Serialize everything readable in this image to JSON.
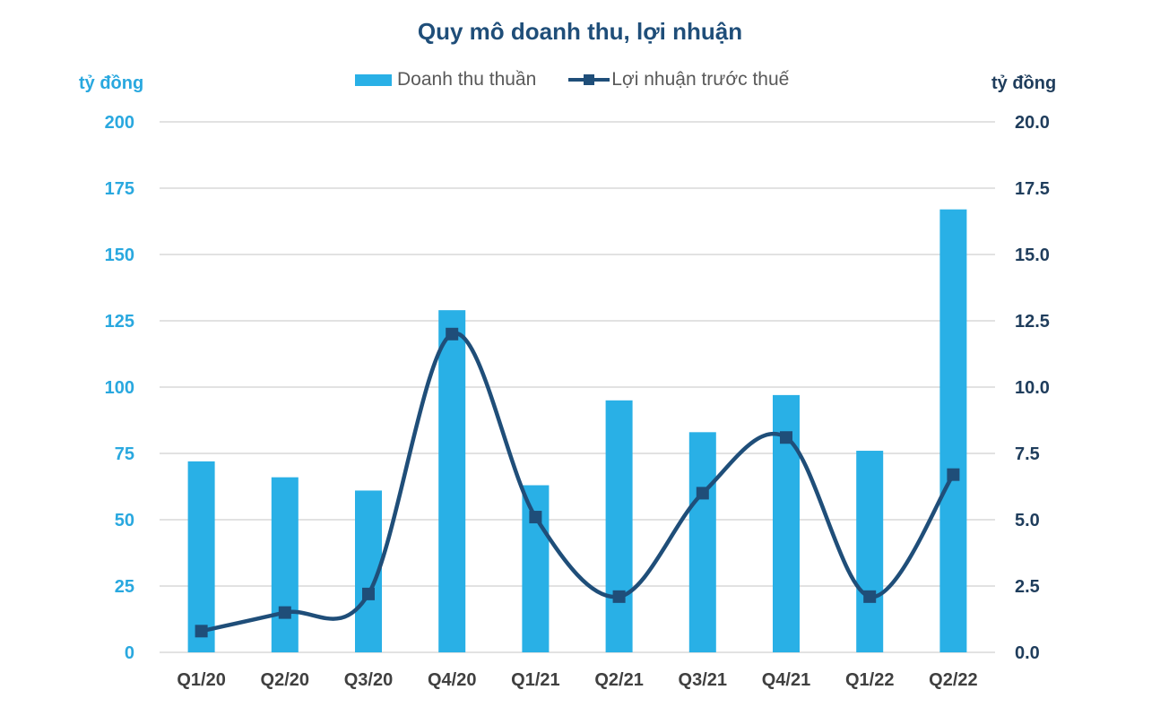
{
  "title": "Quy mô doanh thu, lợi nhuận",
  "colors": {
    "bar": "#29b0e6",
    "line": "#1f4e79",
    "left_axis": "#29a8df",
    "right_axis": "#1f3d5c",
    "grid": "#d9d9d9"
  },
  "chart_data": {
    "type": "bar",
    "title": "Quy mô doanh thu, lợi nhuận",
    "categories": [
      "Q1/20",
      "Q2/20",
      "Q3/20",
      "Q4/20",
      "Q1/21",
      "Q2/21",
      "Q3/21",
      "Q4/21",
      "Q1/22",
      "Q2/22"
    ],
    "series": [
      {
        "name": "Doanh thu thuần",
        "type": "bar",
        "axis": "left",
        "values": [
          72,
          66,
          61,
          129,
          63,
          95,
          83,
          97,
          76,
          167
        ]
      },
      {
        "name": "Lợi nhuận trước thuế",
        "type": "line",
        "axis": "right",
        "smooth": true,
        "values": [
          0.8,
          1.5,
          2.2,
          12.0,
          5.1,
          2.1,
          6.0,
          8.1,
          2.1,
          6.7
        ]
      }
    ],
    "left_axis": {
      "label": "tỷ đồng",
      "ylim": [
        0,
        200
      ],
      "ticks": [
        "0",
        "25",
        "50",
        "75",
        "100",
        "125",
        "150",
        "175",
        "200"
      ]
    },
    "right_axis": {
      "label": "tỷ đồng",
      "ylim": [
        0,
        20
      ],
      "ticks": [
        "0.0",
        "2.5",
        "5.0",
        "7.5",
        "10.0",
        "12.5",
        "15.0",
        "17.5",
        "20.0"
      ]
    },
    "grid": true,
    "legend": "top-center"
  }
}
